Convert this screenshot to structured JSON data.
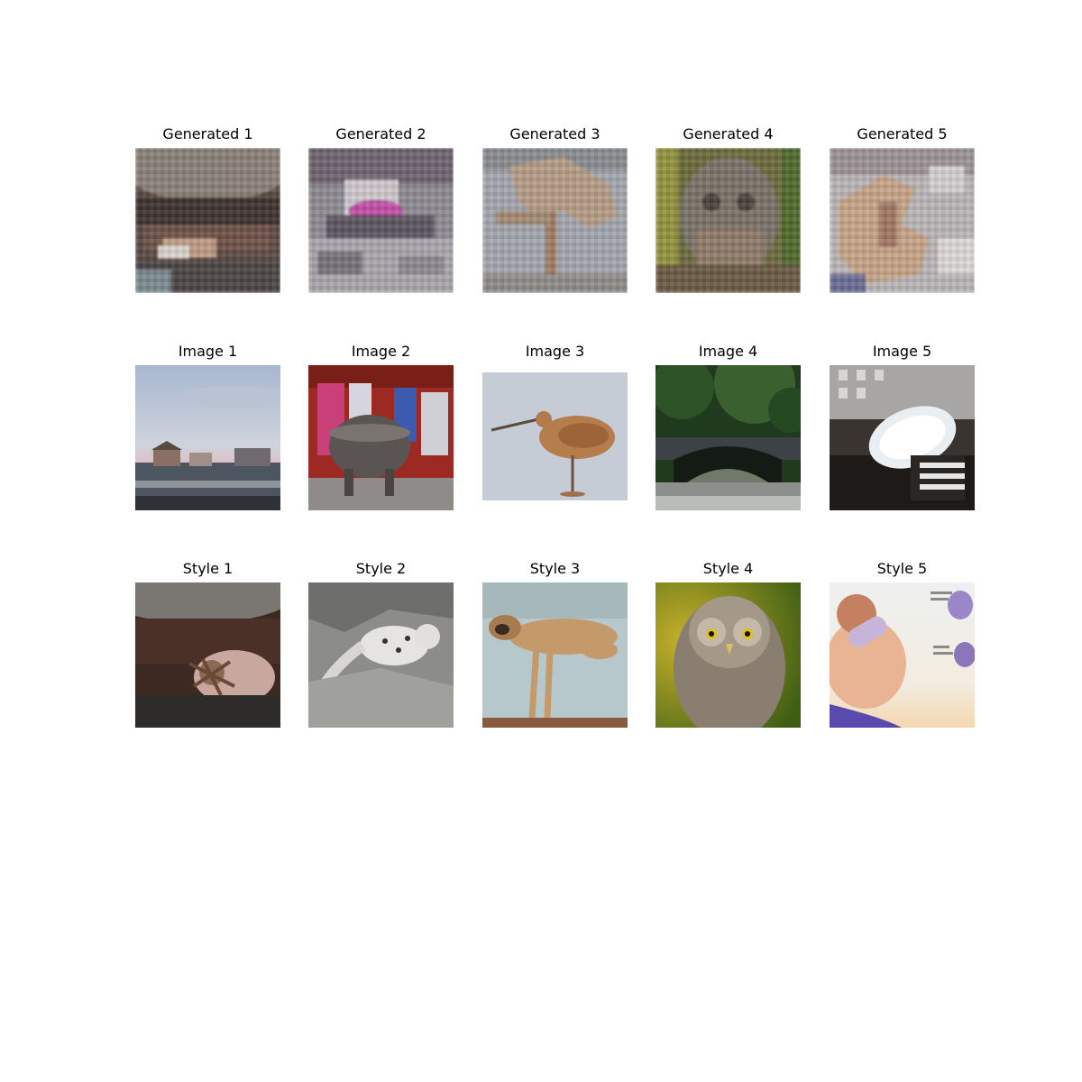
{
  "rows": [
    {
      "kind": "generated",
      "titles": [
        "Generated 1",
        "Generated 2",
        "Generated 3",
        "Generated 4",
        "Generated 5"
      ]
    },
    {
      "kind": "content",
      "titles": [
        "Image 1",
        "Image 2",
        "Image 3",
        "Image 4",
        "Image 5"
      ]
    },
    {
      "kind": "style",
      "titles": [
        "Style 1",
        "Style 2",
        "Style 3",
        "Style 4",
        "Style 5"
      ]
    }
  ]
}
